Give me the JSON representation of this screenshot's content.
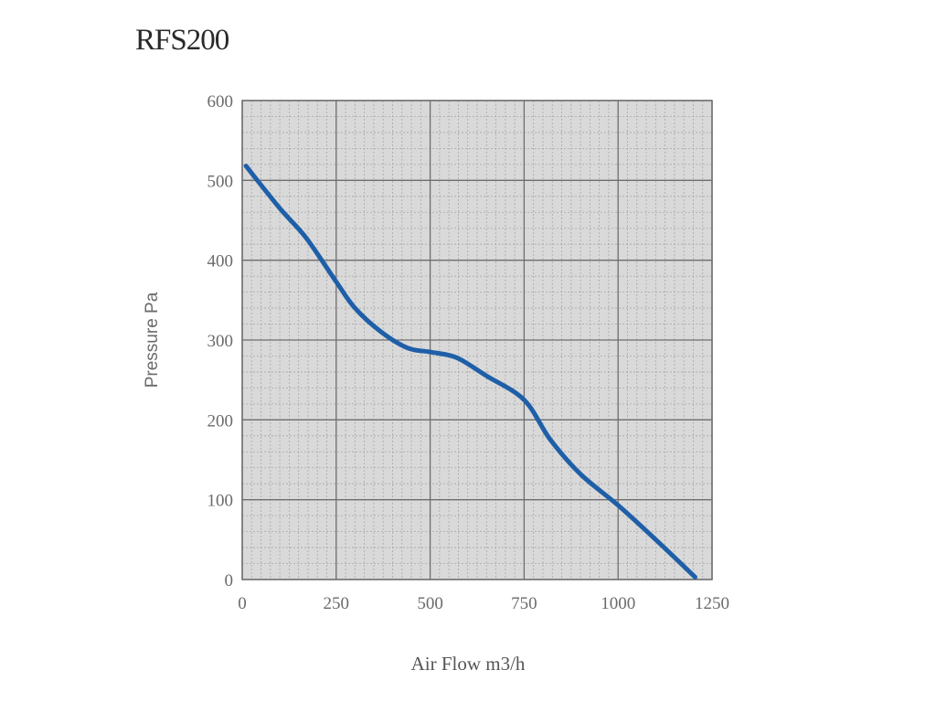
{
  "chart_data": {
    "type": "line",
    "title": "RFS200",
    "xlabel": "Air Flow m3/h",
    "ylabel": "Pressure Pa",
    "xlim": [
      0,
      1250
    ],
    "ylim": [
      0,
      600
    ],
    "xticks": [
      0,
      250,
      500,
      750,
      1000,
      1250
    ],
    "yticks": [
      0,
      100,
      200,
      300,
      400,
      500,
      600
    ],
    "grid": true,
    "colors": {
      "line": "#1f5fa8",
      "plot_bg": "#d9d9d9",
      "major_grid": "#6e6e6e",
      "minor_grid": "#a8a8a8"
    },
    "series": [
      {
        "x": [
          10,
          100,
          170,
          250,
          300,
          370,
          440,
          500,
          570,
          650,
          750,
          820,
          900,
          1000,
          1100,
          1205
        ],
        "y": [
          518,
          465,
          428,
          373,
          340,
          310,
          290,
          285,
          278,
          255,
          225,
          175,
          132,
          93,
          50,
          3
        ]
      }
    ]
  }
}
